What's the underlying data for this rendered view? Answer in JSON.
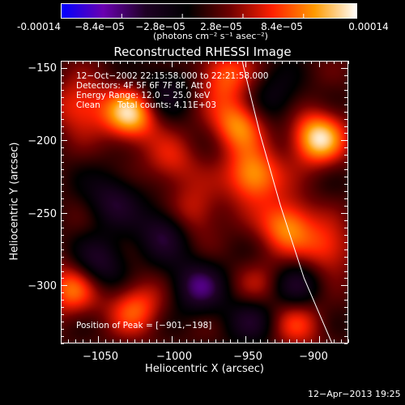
{
  "colorbar": {
    "tick_labels": [
      "-0.00014",
      "−8.4e−05",
      "−2.8e−05",
      "2.8e−05",
      "8.4e−05",
      "0.00014"
    ],
    "unit_label": "(photons cm⁻² s⁻¹ asec⁻²)",
    "range": [
      -0.00014,
      0.00014
    ],
    "colors": [
      "#0000ff",
      "#6a00b0",
      "#1e0024",
      "#000000",
      "#6e0000",
      "#ff2000",
      "#ff9a00",
      "#ffffff"
    ]
  },
  "chart_data": {
    "type": "heatmap",
    "title": "Reconstructed RHESSI Image",
    "xlabel": "Heliocentric X (arcsec)",
    "ylabel": "Heliocentric Y (arcsec)",
    "xlim": [
      -1075,
      -880
    ],
    "ylim": [
      -340,
      -145
    ],
    "x_ticks": [
      -1050,
      -1000,
      -950,
      -900
    ],
    "x_tick_labels": [
      "−1050",
      "−1000",
      "−950",
      "−900"
    ],
    "y_ticks": [
      -150,
      -200,
      -250,
      -300
    ],
    "y_tick_labels": [
      "−150",
      "−200",
      "−250",
      "−300"
    ],
    "peak": [
      -901,
      -198
    ],
    "sources": [
      {
        "x": -901,
        "y": -198,
        "amp": 1.0
      },
      {
        "x": -1028,
        "y": -182,
        "amp": 0.95
      },
      {
        "x": -945,
        "y": -224,
        "amp": 0.85
      },
      {
        "x": -955,
        "y": -188,
        "amp": 0.75
      },
      {
        "x": -965,
        "y": -155,
        "amp": 0.6
      },
      {
        "x": -922,
        "y": -258,
        "amp": 0.78
      },
      {
        "x": -1062,
        "y": -176,
        "amp": 0.55
      },
      {
        "x": -1068,
        "y": -302,
        "amp": 0.65
      },
      {
        "x": -1025,
        "y": -315,
        "amp": 0.6
      },
      {
        "x": -915,
        "y": -325,
        "amp": 0.5
      },
      {
        "x": -895,
        "y": -275,
        "amp": 0.55
      },
      {
        "x": -985,
        "y": -250,
        "amp": 0.45
      },
      {
        "x": -940,
        "y": -300,
        "amp": 0.35
      },
      {
        "x": -1000,
        "y": -215,
        "amp": 0.4
      },
      {
        "x": -1040,
        "y": -240,
        "amp": -0.45
      },
      {
        "x": -1005,
        "y": -262,
        "amp": -0.55
      },
      {
        "x": -982,
        "y": -300,
        "amp": -0.6
      },
      {
        "x": -1048,
        "y": -285,
        "amp": -0.5
      },
      {
        "x": -945,
        "y": -322,
        "amp": -0.45
      },
      {
        "x": -1005,
        "y": -165,
        "amp": -0.4
      },
      {
        "x": -930,
        "y": -172,
        "amp": -0.35
      },
      {
        "x": -915,
        "y": -300,
        "amp": -0.5
      }
    ],
    "limb_curve": [
      [
        -952,
        -145
      ],
      [
        -940,
        -195
      ],
      [
        -926,
        -245
      ],
      [
        -910,
        -295
      ],
      [
        -891,
        -340
      ]
    ]
  },
  "annotations": {
    "time": "12−Oct−2002 22:15:58.000 to 22:21:58.000",
    "detectors": "Detectors: 4F 5F 6F 7F 8F, Att 0",
    "energy": "Energy Range: 12.0 − 25.0 keV",
    "clean": "Clean",
    "counts": "Total counts: 4.11E+03",
    "peak": "Position of Peak = [−901,−198]"
  },
  "timestamp": "12−Apr−2013 19:25"
}
